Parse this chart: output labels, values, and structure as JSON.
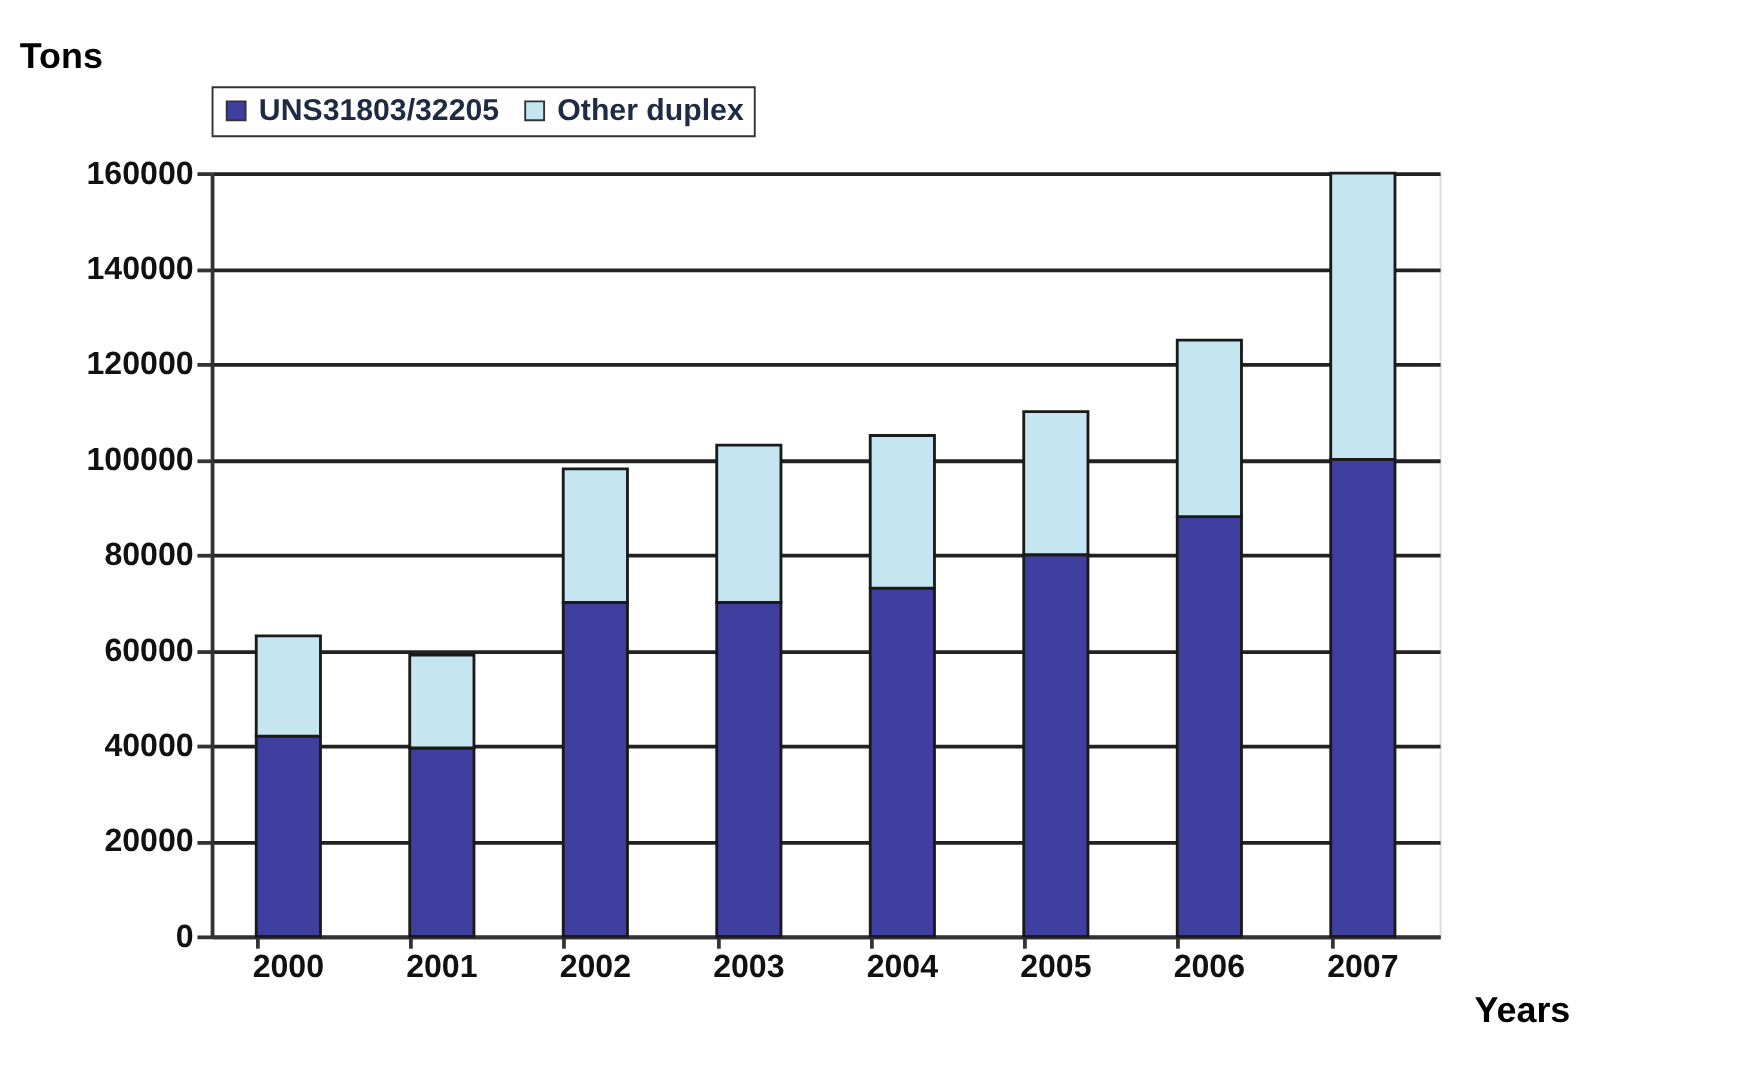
{
  "chart_data": {
    "type": "bar",
    "stacked": true,
    "xlabel": "Years",
    "ylabel": "Tons",
    "categories": [
      "2000",
      "2001",
      "2002",
      "2003",
      "2004",
      "2005",
      "2006",
      "2007"
    ],
    "series": [
      {
        "name": "UNS31803/32205",
        "color": "#3f3f9f",
        "values": [
          42000,
          39500,
          70000,
          70000,
          73000,
          80000,
          88000,
          100000
        ]
      },
      {
        "name": "Other duplex",
        "color": "#c5e6f0",
        "values": [
          21000,
          19500,
          28000,
          33000,
          32000,
          30000,
          37000,
          60000
        ]
      }
    ],
    "ylim": [
      0,
      160000
    ],
    "yticks": [
      0,
      20000,
      40000,
      60000,
      80000,
      100000,
      120000,
      140000,
      160000
    ],
    "grid": "y",
    "legend": "top"
  }
}
